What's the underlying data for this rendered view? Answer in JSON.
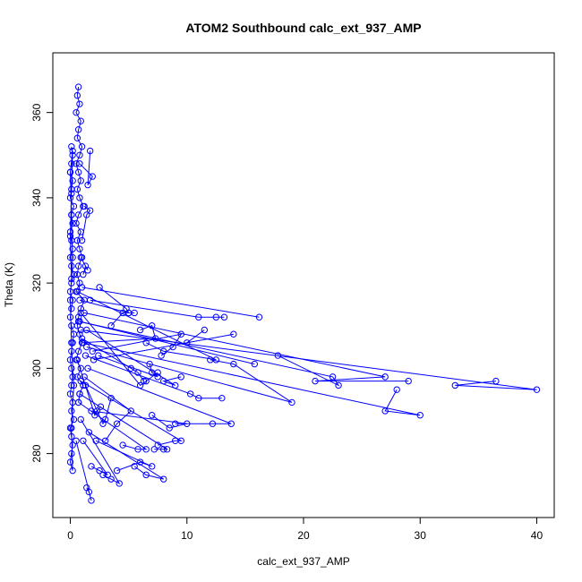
{
  "chart_data": {
    "type": "line",
    "title": "ATOM2 Southbound calc_ext_937_AMP",
    "xlabel": "calc_ext_937_AMP",
    "ylabel": "Theta (K)",
    "xlim": [
      -1.5,
      41.5
    ],
    "ylim": [
      265,
      374
    ],
    "xticks": [
      0,
      10,
      20,
      30,
      40
    ],
    "yticks": [
      280,
      300,
      320,
      340,
      360
    ],
    "grid": false,
    "legend": "none",
    "colors": {
      "series": "#0000ff",
      "axes": "#000000"
    },
    "series": [
      {
        "x": [
          0.1,
          0.2,
          0.1,
          0.0,
          0.2,
          0.1,
          0.0,
          0.3,
          0.1,
          0.2,
          0.0,
          0.1,
          0.2,
          0.0,
          0.1,
          0.3,
          0.1,
          0.0,
          0.2,
          0.1,
          0.0,
          0.1,
          0.3,
          0.2,
          0.1,
          0.0,
          0.1,
          0.2,
          0.1,
          0.0,
          0.2,
          0.1,
          0.3,
          0.0,
          0.1,
          0.2,
          0.1,
          0.0,
          0.2,
          0.1,
          0.3,
          0.1,
          0.0,
          0.2,
          0.1,
          0.0,
          0.2,
          0.1,
          0.0,
          0.1
        ],
        "y": [
          352,
          350,
          348,
          346,
          344,
          342,
          340,
          338,
          336,
          334,
          332,
          330,
          328,
          326,
          324,
          322,
          320,
          318,
          316,
          314,
          312,
          310,
          308,
          306,
          304,
          302,
          300,
          298,
          296,
          294,
          292,
          290,
          288,
          286,
          284,
          282,
          280,
          278,
          276,
          286,
          296,
          306,
          316,
          326,
          336,
          346,
          351,
          341,
          331,
          321
        ]
      },
      {
        "x": [
          0.7,
          0.6,
          0.8,
          0.5,
          0.9,
          0.7,
          0.6,
          1.0,
          0.8,
          0.5,
          0.7,
          0.9,
          0.6,
          0.8,
          1.1,
          0.7,
          0.5,
          0.9,
          0.6,
          0.8,
          1.0,
          0.7,
          0.6,
          0.8,
          0.5,
          1.2,
          0.9,
          0.7,
          0.6,
          0.8,
          1.0,
          0.7,
          0.5,
          0.9,
          0.6,
          1.1,
          0.8,
          0.7
        ],
        "y": [
          366,
          364,
          362,
          360,
          358,
          356,
          354,
          352,
          350,
          348,
          346,
          344,
          342,
          340,
          338,
          336,
          334,
          332,
          330,
          328,
          326,
          324,
          322,
          320,
          318,
          316,
          314,
          312,
          310,
          308,
          306,
          304,
          302,
          300,
          298,
          296,
          294,
          292
        ]
      },
      {
        "x": [
          1.0,
          16.2
        ],
        "y": [
          319,
          312
        ]
      },
      {
        "x": [
          0.8,
          15.8
        ],
        "y": [
          311,
          301
        ]
      },
      {
        "x": [
          1.2,
          27.0,
          21.0,
          29.0
        ],
        "y": [
          313,
          298,
          297,
          297
        ]
      },
      {
        "x": [
          0.9,
          40.0,
          33.0,
          36.5
        ],
        "y": [
          309,
          295,
          296,
          297
        ]
      },
      {
        "x": [
          1.1,
          30.0,
          27.0,
          28.0
        ],
        "y": [
          306,
          289,
          290,
          295
        ]
      },
      {
        "x": [
          0.7,
          22.5,
          23.0,
          17.8
        ],
        "y": [
          311,
          298,
          296,
          303
        ]
      },
      {
        "x": [
          1.4,
          19.0,
          14.0,
          12.0
        ],
        "y": [
          305,
          292,
          301,
          302
        ]
      },
      {
        "x": [
          2.0,
          14.0,
          10.0,
          11.5
        ],
        "y": [
          302,
          308,
          306,
          309
        ]
      },
      {
        "x": [
          0.6,
          12.5,
          8.0,
          6.5
        ],
        "y": [
          318,
          302,
          304,
          306
        ]
      },
      {
        "x": [
          1.5,
          13.8,
          12.2,
          9.0
        ],
        "y": [
          300,
          287,
          287,
          287
        ]
      },
      {
        "x": [
          0.9,
          9.5,
          9.0,
          7.5
        ],
        "y": [
          297,
          283,
          283,
          282
        ]
      },
      {
        "x": [
          1.3,
          10.3,
          11.0,
          13.0
        ],
        "y": [
          303,
          294,
          293,
          293
        ]
      },
      {
        "x": [
          0.8,
          8.3,
          8.0,
          7.2
        ],
        "y": [
          294,
          281,
          281,
          281
        ]
      },
      {
        "x": [
          1.8,
          10.0,
          8.5,
          7.0
        ],
        "y": [
          290,
          287,
          286,
          289
        ]
      },
      {
        "x": [
          0.7,
          6.5,
          5.8,
          4.5
        ],
        "y": [
          292,
          281,
          281,
          282
        ]
      },
      {
        "x": [
          1.6,
          8.0,
          6.5,
          5.5
        ],
        "y": [
          285,
          274,
          275,
          277
        ]
      },
      {
        "x": [
          2.2,
          7.0,
          6.0,
          4.0
        ],
        "y": [
          283,
          277,
          278,
          276
        ]
      },
      {
        "x": [
          0.9,
          4.2,
          3.5,
          2.8
        ],
        "y": [
          288,
          273,
          274,
          275
        ]
      },
      {
        "x": [
          1.1,
          3.2,
          2.5,
          1.8
        ],
        "y": [
          283,
          275,
          276,
          277
        ]
      },
      {
        "x": [
          0.5,
          1.8,
          1.6,
          1.4
        ],
        "y": [
          283,
          269,
          271,
          272
        ]
      },
      {
        "x": [
          1.2,
          5.2,
          4.0,
          3.0
        ],
        "y": [
          298,
          290,
          287,
          283
        ]
      },
      {
        "x": [
          0.9,
          6.0,
          6.5,
          7.5
        ],
        "y": [
          313,
          296,
          297,
          299
        ]
      },
      {
        "x": [
          1.4,
          9.0,
          8.0,
          9.5
        ],
        "y": [
          309,
          296,
          297,
          298
        ]
      },
      {
        "x": [
          0.8,
          5.0,
          4.5,
          3.5
        ],
        "y": [
          316,
          313,
          313,
          310
        ]
      },
      {
        "x": [
          1.7,
          11.0,
          12.5,
          13.2
        ],
        "y": [
          316,
          312,
          312,
          312
        ]
      },
      {
        "x": [
          2.5,
          4.8,
          5.0,
          5.5
        ],
        "y": [
          319,
          314,
          313,
          313
        ]
      },
      {
        "x": [
          1.0,
          7.3,
          7.0,
          6.0
        ],
        "y": [
          306,
          307,
          310,
          309
        ]
      },
      {
        "x": [
          1.3,
          2.8,
          3.0,
          3.5
        ],
        "y": [
          296,
          287,
          288,
          293
        ]
      },
      {
        "x": [
          0.6,
          2.1,
          2.3,
          2.6
        ],
        "y": [
          302,
          289,
          290,
          291
        ]
      },
      {
        "x": [
          1.9,
          9.5,
          8.8,
          7.8
        ],
        "y": [
          304,
          308,
          305,
          303
        ]
      },
      {
        "x": [
          1.0,
          5.2,
          5.8,
          6.3
        ],
        "y": [
          307,
          300,
          299,
          297
        ]
      },
      {
        "x": [
          2.4,
          7.5,
          7.0,
          6.8
        ],
        "y": [
          303,
          298,
          299,
          301
        ]
      },
      {
        "x": [
          0.8,
          1.9,
          1.5,
          1.7
        ],
        "y": [
          348,
          345,
          343,
          351
        ]
      },
      {
        "x": [
          1.2,
          1.7,
          1.4,
          1.0
        ],
        "y": [
          338,
          337,
          336,
          330
        ]
      },
      {
        "x": [
          0.9,
          1.5,
          1.3,
          1.1
        ],
        "y": [
          326,
          323,
          324,
          322
        ]
      }
    ]
  }
}
